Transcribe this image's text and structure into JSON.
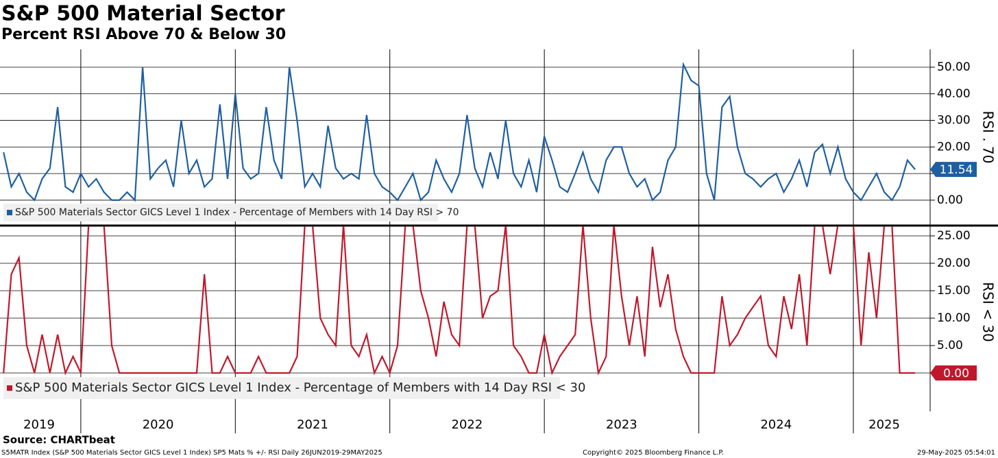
{
  "title": "S&P 500 Material Sector",
  "subtitle": "Percent RSI Above 70 & Below 30",
  "source": "Source: CHARTbeat",
  "footer_left": "S5MATR Index (S&P 500 Materials Sector GICS Level 1 Index) SP5 Mats % +/- RSI  Daily 26JUN2019-29MAY2025",
  "footer_center": "Copyright© 2025 Bloomberg Finance L.P.",
  "footer_right": "29-May-2025 05:54:01",
  "chart_data": [
    {
      "type": "line",
      "y_label": "RSI . 70",
      "xlim": [
        2019.477,
        2025.497
      ],
      "xticks": [
        2020,
        2021,
        2022,
        2023,
        2024,
        2025
      ],
      "ylim": [
        -9.3,
        56.7
      ],
      "yticks": [
        {
          "value": 0,
          "label": "0.00"
        },
        {
          "value": 10,
          "label": "10.00"
        },
        {
          "value": 20,
          "label": "20.00"
        },
        {
          "value": 30,
          "label": "30.00"
        },
        {
          "value": 40,
          "label": "40.00"
        },
        {
          "value": 50,
          "label": "50.00"
        }
      ],
      "grid": true,
      "x": [
        2019.5,
        2019.55,
        2019.6,
        2019.65,
        2019.7,
        2019.75,
        2019.8,
        2019.85,
        2019.9,
        2019.95,
        2020.0,
        2020.05,
        2020.1,
        2020.15,
        2020.2,
        2020.25,
        2020.3,
        2020.35,
        2020.4,
        2020.45,
        2020.5,
        2020.55,
        2020.6,
        2020.65,
        2020.7,
        2020.75,
        2020.8,
        2020.85,
        2020.9,
        2020.95,
        2021.0,
        2021.05,
        2021.1,
        2021.15,
        2021.2,
        2021.25,
        2021.3,
        2021.35,
        2021.4,
        2021.45,
        2021.5,
        2021.55,
        2021.6,
        2021.65,
        2021.7,
        2021.75,
        2021.8,
        2021.85,
        2021.9,
        2021.95,
        2022.0,
        2022.05,
        2022.1,
        2022.15,
        2022.2,
        2022.25,
        2022.3,
        2022.35,
        2022.4,
        2022.45,
        2022.5,
        2022.55,
        2022.6,
        2022.65,
        2022.7,
        2022.75,
        2022.8,
        2022.85,
        2022.9,
        2022.95,
        2023.0,
        2023.05,
        2023.1,
        2023.15,
        2023.2,
        2023.25,
        2023.3,
        2023.35,
        2023.4,
        2023.45,
        2023.5,
        2023.55,
        2023.6,
        2023.65,
        2023.7,
        2023.75,
        2023.8,
        2023.85,
        2023.9,
        2023.95,
        2024.0,
        2024.05,
        2024.1,
        2024.15,
        2024.2,
        2024.25,
        2024.3,
        2024.35,
        2024.4,
        2024.45,
        2024.5,
        2024.55,
        2024.6,
        2024.65,
        2024.7,
        2024.75,
        2024.8,
        2024.85,
        2024.9,
        2024.95,
        2025.0,
        2025.05,
        2025.1,
        2025.15,
        2025.2,
        2025.25,
        2025.3,
        2025.35,
        2025.4
      ],
      "series": [
        {
          "name": "S&P 500 Materials Sector GICS Level 1 Index - Percentage of Members with 14 Day RSI > 70",
          "color": "#1f5fa0",
          "last_label": "11.54",
          "values": [
            18,
            5,
            10,
            3,
            0,
            8,
            12,
            35,
            5,
            3,
            10,
            5,
            8,
            3,
            0,
            0,
            3,
            0,
            50,
            8,
            12,
            15,
            5,
            30,
            10,
            15,
            5,
            8,
            36,
            8,
            40,
            12,
            8,
            10,
            35,
            15,
            8,
            50,
            30,
            5,
            10,
            5,
            28,
            12,
            8,
            10,
            8,
            32,
            10,
            5,
            3,
            0,
            5,
            10,
            0,
            3,
            15,
            8,
            3,
            10,
            32,
            12,
            5,
            18,
            8,
            30,
            10,
            5,
            15,
            3,
            24,
            15,
            5,
            3,
            10,
            18,
            8,
            3,
            15,
            20,
            20,
            10,
            5,
            8,
            0,
            3,
            15,
            20,
            51,
            45,
            43,
            10,
            0,
            35,
            39,
            20,
            10,
            8,
            5,
            8,
            10,
            3,
            8,
            15,
            5,
            18,
            21,
            10,
            20,
            8,
            3,
            0,
            5,
            10,
            3,
            0,
            5,
            15,
            11.54
          ]
        }
      ]
    },
    {
      "type": "line",
      "y_label": "RSI < 30",
      "xlim": [
        2019.477,
        2025.497
      ],
      "xticks": [
        2020,
        2021,
        2022,
        2023,
        2024,
        2025
      ],
      "x_labels": [
        {
          "value": 2019.73,
          "label": "2019"
        },
        {
          "value": 2020.5,
          "label": "2020"
        },
        {
          "value": 2021.5,
          "label": "2021"
        },
        {
          "value": 2022.5,
          "label": "2022"
        },
        {
          "value": 2023.5,
          "label": "2023"
        },
        {
          "value": 2024.5,
          "label": "2024"
        },
        {
          "value": 2025.2,
          "label": "2025"
        }
      ],
      "ylim": [
        -5.75,
        26.75
      ],
      "yticks": [
        {
          "value": 0,
          "label": "0.00"
        },
        {
          "value": 5,
          "label": "5.00"
        },
        {
          "value": 10,
          "label": "10.00"
        },
        {
          "value": 15,
          "label": "15.00"
        },
        {
          "value": 20,
          "label": "20.00"
        },
        {
          "value": 25,
          "label": "25.00"
        }
      ],
      "grid": true,
      "x": [
        2019.5,
        2019.55,
        2019.6,
        2019.65,
        2019.7,
        2019.75,
        2019.8,
        2019.85,
        2019.9,
        2019.95,
        2020.0,
        2020.05,
        2020.1,
        2020.15,
        2020.2,
        2020.25,
        2020.3,
        2020.35,
        2020.4,
        2020.45,
        2020.5,
        2020.55,
        2020.6,
        2020.65,
        2020.7,
        2020.75,
        2020.8,
        2020.85,
        2020.9,
        2020.95,
        2021.0,
        2021.05,
        2021.1,
        2021.15,
        2021.2,
        2021.25,
        2021.3,
        2021.35,
        2021.4,
        2021.45,
        2021.5,
        2021.55,
        2021.6,
        2021.65,
        2021.7,
        2021.75,
        2021.8,
        2021.85,
        2021.9,
        2021.95,
        2022.0,
        2022.05,
        2022.1,
        2022.15,
        2022.2,
        2022.25,
        2022.3,
        2022.35,
        2022.4,
        2022.45,
        2022.5,
        2022.55,
        2022.6,
        2022.65,
        2022.7,
        2022.75,
        2022.8,
        2022.85,
        2022.9,
        2022.95,
        2023.0,
        2023.05,
        2023.1,
        2023.15,
        2023.2,
        2023.25,
        2023.3,
        2023.35,
        2023.4,
        2023.45,
        2023.5,
        2023.55,
        2023.6,
        2023.65,
        2023.7,
        2023.75,
        2023.8,
        2023.85,
        2023.9,
        2023.95,
        2024.0,
        2024.05,
        2024.1,
        2024.15,
        2024.2,
        2024.25,
        2024.3,
        2024.35,
        2024.4,
        2024.45,
        2024.5,
        2024.55,
        2024.6,
        2024.65,
        2024.7,
        2024.75,
        2024.8,
        2024.85,
        2024.9,
        2024.95,
        2025.0,
        2025.05,
        2025.1,
        2025.15,
        2025.2,
        2025.25,
        2025.3,
        2025.35,
        2025.4
      ],
      "series": [
        {
          "name": "S&P 500 Materials Sector GICS Level 1 Index - Percentage of Members with 14 Day RSI < 30",
          "color": "#c0182b",
          "last_label": "0.00",
          "values": [
            0,
            18,
            21,
            5,
            0,
            7,
            0,
            7,
            0,
            3,
            0,
            27,
            27,
            27,
            5,
            0,
            0,
            0,
            0,
            0,
            0,
            0,
            0,
            0,
            0,
            0,
            18,
            0,
            0,
            3,
            0,
            0,
            0,
            3,
            0,
            0,
            0,
            0,
            3,
            27,
            27,
            10,
            7,
            5,
            27,
            5,
            3,
            7,
            0,
            3,
            0,
            5,
            27,
            27,
            15,
            10,
            3,
            13,
            7,
            5,
            27,
            27,
            10,
            14,
            15,
            27,
            5,
            3,
            0,
            0,
            7,
            0,
            3,
            5,
            7,
            27,
            10,
            0,
            3,
            27,
            14,
            5,
            14,
            3,
            23,
            12,
            18,
            8,
            3,
            0,
            0,
            0,
            0,
            14,
            5,
            7,
            10,
            12,
            14,
            5,
            3,
            14,
            8,
            18,
            5,
            27,
            27,
            18,
            27,
            27,
            27,
            5,
            22,
            10,
            27,
            27,
            0,
            0,
            0
          ]
        }
      ]
    }
  ]
}
